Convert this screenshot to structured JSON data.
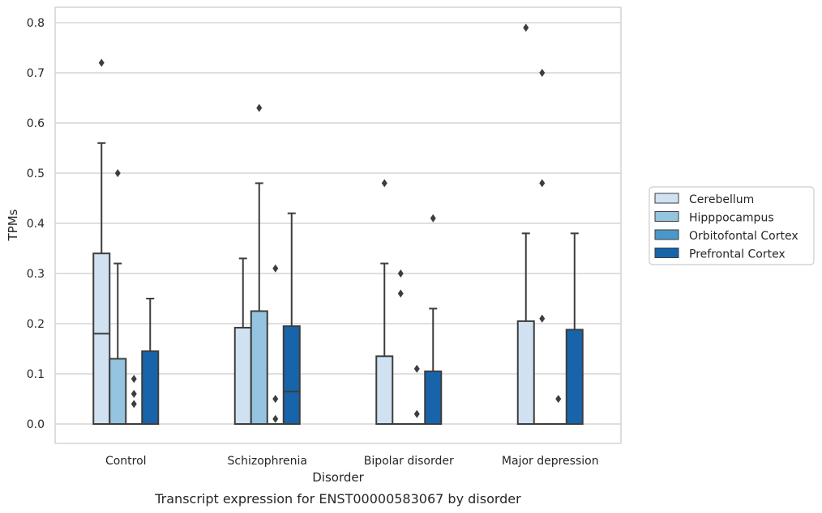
{
  "chart_data": {
    "type": "box",
    "title": "Transcript expression for ENST00000583067 by disorder",
    "xlabel": "Disorder",
    "ylabel": "TPMs",
    "ylim": [
      -0.04,
      0.83
    ],
    "yticks": [
      "0.0",
      "0.1",
      "0.2",
      "0.3",
      "0.4",
      "0.5",
      "0.6",
      "0.7",
      "0.8"
    ],
    "grid": "horizontal",
    "legend_position": "right",
    "categories": [
      "Control",
      "Schizophrenia",
      "Bipolar disorder",
      "Major depression"
    ],
    "series": [
      {
        "name": "Cerebellum",
        "color": "#d0e1f2",
        "boxes": [
          {
            "q1": 0.0,
            "median": 0.18,
            "q3": 0.34,
            "whisker_low": 0.0,
            "whisker_high": 0.56,
            "outliers": [
              0.72
            ]
          },
          {
            "q1": 0.0,
            "median": 0.0,
            "q3": 0.192,
            "whisker_low": 0.0,
            "whisker_high": 0.33,
            "outliers": []
          },
          {
            "q1": 0.0,
            "median": 0.0,
            "q3": 0.135,
            "whisker_low": 0.0,
            "whisker_high": 0.32,
            "outliers": [
              0.48
            ]
          },
          {
            "q1": 0.0,
            "median": 0.0,
            "q3": 0.205,
            "whisker_low": 0.0,
            "whisker_high": 0.38,
            "outliers": [
              0.79
            ]
          }
        ]
      },
      {
        "name": "Hipppocampus",
        "color": "#94c4df",
        "boxes": [
          {
            "q1": 0.0,
            "median": 0.0,
            "q3": 0.13,
            "whisker_low": 0.0,
            "whisker_high": 0.32,
            "outliers": [
              0.5
            ]
          },
          {
            "q1": 0.0,
            "median": 0.0,
            "q3": 0.225,
            "whisker_low": 0.0,
            "whisker_high": 0.48,
            "outliers": [
              0.63
            ]
          },
          {
            "q1": 0.0,
            "median": 0.0,
            "q3": 0.0,
            "whisker_low": 0.0,
            "whisker_high": 0.0,
            "outliers": [
              0.3,
              0.26
            ]
          },
          {
            "q1": 0.0,
            "median": 0.0,
            "q3": 0.0,
            "whisker_low": 0.0,
            "whisker_high": 0.0,
            "outliers": [
              0.7,
              0.48,
              0.21
            ]
          }
        ]
      },
      {
        "name": "Orbitofontal Cortex",
        "color": "#4a98c9",
        "boxes": [
          {
            "q1": 0.0,
            "median": 0.0,
            "q3": 0.0,
            "whisker_low": 0.0,
            "whisker_high": 0.0,
            "outliers": [
              0.09,
              0.06,
              0.04
            ]
          },
          {
            "q1": 0.0,
            "median": 0.0,
            "q3": 0.0,
            "whisker_low": 0.0,
            "whisker_high": 0.0,
            "outliers": [
              0.31,
              0.05,
              0.01
            ]
          },
          {
            "q1": 0.0,
            "median": 0.0,
            "q3": 0.0,
            "whisker_low": 0.0,
            "whisker_high": 0.0,
            "outliers": [
              0.11,
              0.02
            ]
          },
          {
            "q1": 0.0,
            "median": 0.0,
            "q3": 0.0,
            "whisker_low": 0.0,
            "whisker_high": 0.0,
            "outliers": [
              0.05
            ]
          }
        ]
      },
      {
        "name": "Prefrontal Cortex",
        "color": "#1764ab",
        "boxes": [
          {
            "q1": 0.0,
            "median": 0.0,
            "q3": 0.145,
            "whisker_low": 0.0,
            "whisker_high": 0.25,
            "outliers": []
          },
          {
            "q1": 0.0,
            "median": 0.065,
            "q3": 0.195,
            "whisker_low": 0.0,
            "whisker_high": 0.42,
            "outliers": []
          },
          {
            "q1": 0.0,
            "median": 0.0,
            "q3": 0.105,
            "whisker_low": 0.0,
            "whisker_high": 0.23,
            "outliers": [
              0.41
            ]
          },
          {
            "q1": 0.0,
            "median": 0.0,
            "q3": 0.188,
            "whisker_low": 0.0,
            "whisker_high": 0.38,
            "outliers": []
          }
        ]
      }
    ]
  }
}
